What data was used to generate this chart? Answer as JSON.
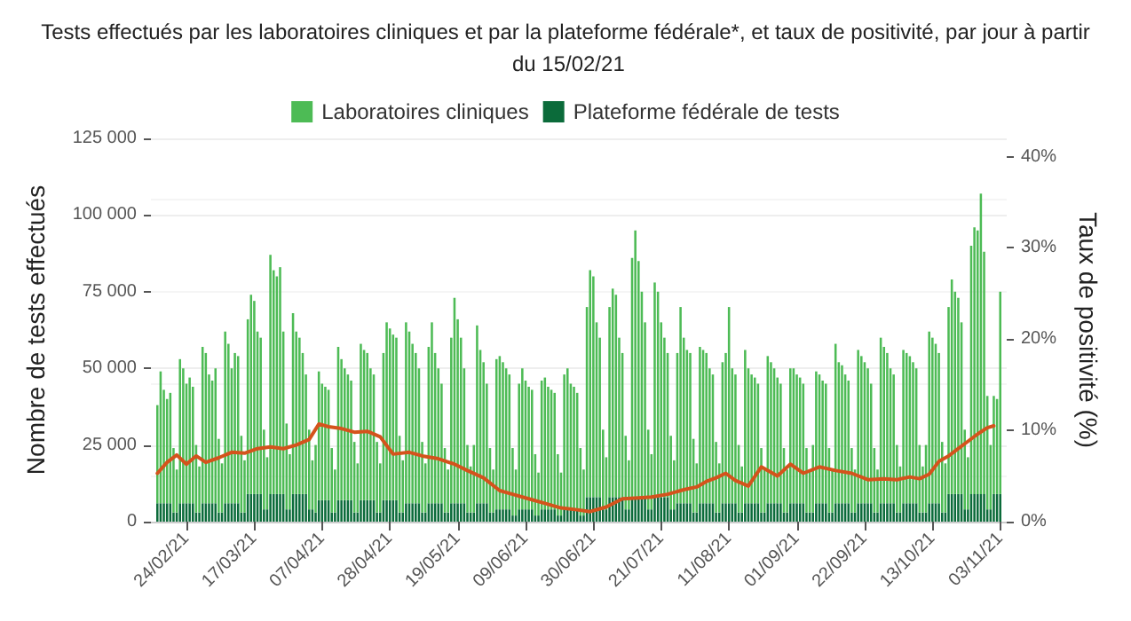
{
  "chart_data": {
    "type": "bar",
    "title": "Tests effectués par les laboratoires cliniques et par la plateforme fédérale*, et taux de positivité, par jour à partir du 15/02/21",
    "ylabel": "Nombre de tests effectués",
    "y2label": "Taux de positivité (%)",
    "x": [
      "2021-02-15",
      "2021-02-16",
      "2021-02-17",
      "2021-02-18",
      "2021-02-19",
      "2021-02-20",
      "2021-02-21",
      "2021-02-22",
      "2021-02-23",
      "2021-02-24",
      "2021-02-25",
      "2021-02-26",
      "2021-02-27",
      "2021-02-28",
      "2021-03-01",
      "2021-03-02",
      "2021-03-03",
      "2021-03-04",
      "2021-03-05",
      "2021-03-06",
      "2021-03-07",
      "2021-03-08",
      "2021-03-09",
      "2021-03-10",
      "2021-03-11",
      "2021-03-12",
      "2021-03-13",
      "2021-03-14",
      "2021-03-15",
      "2021-03-16",
      "2021-03-17",
      "2021-03-18",
      "2021-03-19",
      "2021-03-20",
      "2021-03-21",
      "2021-03-22",
      "2021-03-23",
      "2021-03-24",
      "2021-03-25",
      "2021-03-26",
      "2021-03-27",
      "2021-03-28",
      "2021-03-29",
      "2021-03-30",
      "2021-03-31",
      "2021-04-01",
      "2021-04-02",
      "2021-04-03",
      "2021-04-04",
      "2021-04-05",
      "2021-04-06",
      "2021-04-07",
      "2021-04-08",
      "2021-04-09",
      "2021-04-10",
      "2021-04-11",
      "2021-04-12",
      "2021-04-13",
      "2021-04-14",
      "2021-04-15",
      "2021-04-16",
      "2021-04-17",
      "2021-04-18",
      "2021-04-19",
      "2021-04-20",
      "2021-04-21",
      "2021-04-22",
      "2021-04-23",
      "2021-04-24",
      "2021-04-25",
      "2021-04-26",
      "2021-04-27",
      "2021-04-28",
      "2021-04-29",
      "2021-04-30",
      "2021-05-01",
      "2021-05-02",
      "2021-05-03",
      "2021-05-04",
      "2021-05-05",
      "2021-05-06",
      "2021-05-07",
      "2021-05-08",
      "2021-05-09",
      "2021-05-10",
      "2021-05-11",
      "2021-05-12",
      "2021-05-13",
      "2021-05-14",
      "2021-05-15",
      "2021-05-16",
      "2021-05-17",
      "2021-05-18",
      "2021-05-19",
      "2021-05-20",
      "2021-05-21",
      "2021-05-22",
      "2021-05-23",
      "2021-05-24",
      "2021-05-25",
      "2021-05-26",
      "2021-05-27",
      "2021-05-28",
      "2021-05-29",
      "2021-05-30",
      "2021-05-31",
      "2021-06-01",
      "2021-06-02",
      "2021-06-03",
      "2021-06-04",
      "2021-06-05",
      "2021-06-06",
      "2021-06-07",
      "2021-06-08",
      "2021-06-09",
      "2021-06-10",
      "2021-06-11",
      "2021-06-12",
      "2021-06-13",
      "2021-06-14",
      "2021-06-15",
      "2021-06-16",
      "2021-06-17",
      "2021-06-18",
      "2021-06-19",
      "2021-06-20",
      "2021-06-21",
      "2021-06-22",
      "2021-06-23",
      "2021-06-24",
      "2021-06-25",
      "2021-06-26",
      "2021-06-27",
      "2021-06-28",
      "2021-06-29",
      "2021-06-30",
      "2021-07-01",
      "2021-07-02",
      "2021-07-03",
      "2021-07-04",
      "2021-07-05",
      "2021-07-06",
      "2021-07-07",
      "2021-07-08",
      "2021-07-09",
      "2021-07-10",
      "2021-07-11",
      "2021-07-12",
      "2021-07-13",
      "2021-07-14",
      "2021-07-15",
      "2021-07-16",
      "2021-07-17",
      "2021-07-18",
      "2021-07-19",
      "2021-07-20",
      "2021-07-21",
      "2021-07-22",
      "2021-07-23",
      "2021-07-24",
      "2021-07-25",
      "2021-07-26",
      "2021-07-27",
      "2021-07-28",
      "2021-07-29",
      "2021-07-30",
      "2021-07-31",
      "2021-08-01",
      "2021-08-02",
      "2021-08-03",
      "2021-08-04",
      "2021-08-05",
      "2021-08-06",
      "2021-08-07",
      "2021-08-08",
      "2021-08-09",
      "2021-08-10",
      "2021-08-11",
      "2021-08-12",
      "2021-08-13",
      "2021-08-14",
      "2021-08-15",
      "2021-08-16",
      "2021-08-17",
      "2021-08-18",
      "2021-08-19",
      "2021-08-20",
      "2021-08-21",
      "2021-08-22",
      "2021-08-23",
      "2021-08-24",
      "2021-08-25",
      "2021-08-26",
      "2021-08-27",
      "2021-08-28",
      "2021-08-29",
      "2021-08-30",
      "2021-08-31",
      "2021-09-01",
      "2021-09-02",
      "2021-09-03",
      "2021-09-04",
      "2021-09-05",
      "2021-09-06",
      "2021-09-07",
      "2021-09-08",
      "2021-09-09",
      "2021-09-10",
      "2021-09-11",
      "2021-09-12",
      "2021-09-13",
      "2021-09-14",
      "2021-09-15",
      "2021-09-16",
      "2021-09-17",
      "2021-09-18",
      "2021-09-19",
      "2021-09-20",
      "2021-09-21",
      "2021-09-22",
      "2021-09-23",
      "2021-09-24",
      "2021-09-25",
      "2021-09-26",
      "2021-09-27",
      "2021-09-28",
      "2021-09-29",
      "2021-09-30",
      "2021-10-01",
      "2021-10-02",
      "2021-10-03",
      "2021-10-04",
      "2021-10-05",
      "2021-10-06",
      "2021-10-07",
      "2021-10-08",
      "2021-10-09",
      "2021-10-10",
      "2021-10-11",
      "2021-10-12",
      "2021-10-13",
      "2021-10-14",
      "2021-10-15",
      "2021-10-16",
      "2021-10-17",
      "2021-10-18",
      "2021-10-19",
      "2021-10-20",
      "2021-10-21",
      "2021-10-22",
      "2021-10-23",
      "2021-10-24",
      "2021-10-25",
      "2021-10-26",
      "2021-10-27",
      "2021-10-28",
      "2021-10-29",
      "2021-10-30",
      "2021-10-31",
      "2021-11-01",
      "2021-11-02",
      "2021-11-03"
    ],
    "series": [
      {
        "name": "Plateforme fédérale de tests",
        "color": "#0b6b3a",
        "values": [
          6000,
          6000,
          6000,
          6000,
          6000,
          3000,
          3000,
          6000,
          6000,
          6000,
          6000,
          6000,
          3000,
          3000,
          6000,
          6000,
          6000,
          6000,
          6000,
          3000,
          3000,
          6000,
          6000,
          6000,
          6000,
          6000,
          3000,
          3000,
          9000,
          9000,
          9000,
          9000,
          9000,
          4000,
          4000,
          9000,
          9000,
          9000,
          9000,
          9000,
          4000,
          4000,
          9000,
          9000,
          9000,
          9000,
          9000,
          4000,
          4000,
          3000,
          7000,
          7000,
          7000,
          7000,
          3000,
          3000,
          7000,
          7000,
          7000,
          7000,
          7000,
          3000,
          3000,
          7000,
          7000,
          7000,
          7000,
          7000,
          3000,
          3000,
          7000,
          7000,
          7000,
          7000,
          7000,
          3000,
          3000,
          6000,
          6000,
          6000,
          6000,
          6000,
          3000,
          3000,
          6000,
          6000,
          6000,
          6000,
          6000,
          3000,
          3000,
          6000,
          6000,
          6000,
          6000,
          6000,
          3000,
          3000,
          3000,
          6000,
          6000,
          6000,
          6000,
          3000,
          3000,
          4000,
          4000,
          4000,
          4000,
          4000,
          2000,
          2000,
          4000,
          4000,
          4000,
          4000,
          4000,
          2000,
          2000,
          4000,
          4000,
          4000,
          4000,
          4000,
          2000,
          2000,
          4000,
          4000,
          4000,
          4000,
          4000,
          2000,
          2000,
          8000,
          8000,
          8000,
          8000,
          8000,
          4000,
          4000,
          8000,
          8000,
          8000,
          8000,
          8000,
          4000,
          4000,
          8000,
          8000,
          8000,
          8000,
          8000,
          4000,
          4000,
          8000,
          8000,
          8000,
          8000,
          8000,
          4000,
          4000,
          6000,
          6000,
          6000,
          6000,
          6000,
          3000,
          3000,
          6000,
          6000,
          6000,
          6000,
          6000,
          3000,
          3000,
          6000,
          6000,
          6000,
          6000,
          6000,
          3000,
          3000,
          6000,
          6000,
          6000,
          6000,
          6000,
          3000,
          3000,
          6000,
          6000,
          6000,
          6000,
          6000,
          3000,
          3000,
          6000,
          6000,
          6000,
          6000,
          6000,
          3000,
          3000,
          3000,
          6000,
          6000,
          6000,
          6000,
          3000,
          3000,
          6000,
          6000,
          6000,
          6000,
          6000,
          3000,
          3000,
          6000,
          6000,
          6000,
          6000,
          6000,
          3000,
          3000,
          6000,
          6000,
          6000,
          6000,
          6000,
          3000,
          3000,
          6000,
          6000,
          6000,
          6000,
          6000,
          3000,
          3000,
          3000,
          6000,
          6000,
          6000,
          6000,
          3000,
          3000,
          9000,
          9000,
          9000,
          9000,
          9000,
          4000,
          4000,
          9000,
          9000,
          9000,
          9000,
          9000,
          4000,
          4000,
          9000,
          9000,
          9000
        ]
      },
      {
        "name": "Laboratoires cliniques",
        "color": "#4dbb55",
        "values": [
          32000,
          43000,
          37000,
          34000,
          36000,
          21000,
          14000,
          47000,
          44000,
          39000,
          41000,
          38000,
          22000,
          15000,
          51000,
          49000,
          42000,
          40000,
          44000,
          24000,
          16000,
          56000,
          52000,
          44000,
          49000,
          48000,
          25000,
          17000,
          57000,
          65000,
          63000,
          53000,
          51000,
          26000,
          17000,
          78000,
          73000,
          71000,
          74000,
          53000,
          28000,
          18000,
          59000,
          53000,
          51000,
          46000,
          39000,
          26000,
          16000,
          22000,
          42000,
          38000,
          37000,
          36000,
          21000,
          14000,
          50000,
          46000,
          43000,
          41000,
          39000,
          23000,
          16000,
          51000,
          49000,
          48000,
          43000,
          41000,
          23000,
          16000,
          48000,
          58000,
          56000,
          54000,
          53000,
          25000,
          17000,
          59000,
          56000,
          52000,
          49000,
          44000,
          23000,
          16000,
          51000,
          59000,
          49000,
          44000,
          39000,
          21000,
          14000,
          54000,
          67000,
          60000,
          54000,
          44000,
          22000,
          15000,
          22000,
          58000,
          50000,
          46000,
          39000,
          21000,
          14000,
          49000,
          50000,
          48000,
          46000,
          44000,
          22000,
          15000,
          41000,
          46000,
          42000,
          40000,
          39000,
          20000,
          14000,
          42000,
          43000,
          40000,
          39000,
          38000,
          20000,
          14000,
          44000,
          46000,
          41000,
          40000,
          38000,
          22000,
          15000,
          62000,
          74000,
          72000,
          57000,
          52000,
          26000,
          17000,
          62000,
          68000,
          66000,
          52000,
          47000,
          24000,
          16000,
          78000,
          87000,
          77000,
          67000,
          57000,
          26000,
          18000,
          70000,
          67000,
          57000,
          52000,
          47000,
          24000,
          16000,
          49000,
          64000,
          54000,
          50000,
          49000,
          24000,
          16000,
          51000,
          50000,
          49000,
          44000,
          42000,
          23000,
          16000,
          46000,
          49000,
          64000,
          44000,
          42000,
          22000,
          15000,
          50000,
          44000,
          42000,
          41000,
          39000,
          21000,
          14000,
          48000,
          46000,
          44000,
          41000,
          39000,
          21000,
          14000,
          44000,
          44000,
          42000,
          41000,
          39000,
          21000,
          14000,
          22000,
          43000,
          42000,
          40000,
          39000,
          21000,
          14000,
          52000,
          46000,
          45000,
          42000,
          40000,
          21000,
          14000,
          50000,
          48000,
          46000,
          44000,
          39000,
          21000,
          14000,
          54000,
          51000,
          49000,
          44000,
          42000,
          22000,
          15000,
          50000,
          49000,
          48000,
          46000,
          44000,
          22000,
          15000,
          22000,
          56000,
          54000,
          52000,
          49000,
          23000,
          16000,
          61000,
          70000,
          66000,
          64000,
          56000,
          26000,
          17000,
          81000,
          87000,
          86000,
          98000,
          79000,
          37000,
          21000,
          32000,
          31000,
          66000
        ]
      },
      {
        "type": "line",
        "axis": "y2",
        "color": "#d4531c",
        "x": [
          "2021-02-15",
          "2021-02-18",
          "2021-02-21",
          "2021-02-24",
          "2021-02-27",
          "2021-03-02",
          "2021-03-06",
          "2021-03-10",
          "2021-03-14",
          "2021-03-18",
          "2021-03-22",
          "2021-03-26",
          "2021-03-30",
          "2021-04-03",
          "2021-04-06",
          "2021-04-09",
          "2021-04-13",
          "2021-04-17",
          "2021-04-21",
          "2021-04-25",
          "2021-04-29",
          "2021-05-04",
          "2021-05-08",
          "2021-05-13",
          "2021-05-18",
          "2021-05-22",
          "2021-05-27",
          "2021-06-01",
          "2021-06-05",
          "2021-06-10",
          "2021-06-15",
          "2021-06-20",
          "2021-06-25",
          "2021-06-29",
          "2021-07-04",
          "2021-07-09",
          "2021-07-14",
          "2021-07-18",
          "2021-07-23",
          "2021-07-28",
          "2021-08-01",
          "2021-08-04",
          "2021-08-07",
          "2021-08-10",
          "2021-08-13",
          "2021-08-17",
          "2021-08-21",
          "2021-08-26",
          "2021-08-30",
          "2021-09-03",
          "2021-09-08",
          "2021-09-13",
          "2021-09-18",
          "2021-09-23",
          "2021-09-28",
          "2021-10-02",
          "2021-10-06",
          "2021-10-09",
          "2021-10-12",
          "2021-10-15",
          "2021-10-18",
          "2021-10-21",
          "2021-10-24",
          "2021-10-27",
          "2021-10-30",
          "2021-11-01"
        ],
        "values": [
          5.3,
          6.5,
          7.3,
          6.3,
          7.2,
          6.5,
          7.0,
          7.6,
          7.5,
          8.0,
          8.2,
          8.0,
          8.4,
          9.0,
          10.7,
          10.4,
          10.2,
          9.8,
          9.9,
          9.3,
          7.4,
          7.6,
          7.2,
          6.9,
          6.3,
          5.6,
          4.8,
          3.4,
          3.0,
          2.5,
          2.0,
          1.5,
          1.3,
          1.1,
          1.6,
          2.5,
          2.6,
          2.7,
          3.0,
          3.5,
          3.8,
          4.4,
          4.8,
          5.3,
          4.5,
          3.9,
          6.0,
          5.0,
          6.3,
          5.3,
          6.0,
          5.6,
          5.3,
          4.6,
          4.7,
          4.6,
          4.9,
          4.7,
          5.2,
          6.6,
          7.2,
          8.0,
          8.8,
          9.6,
          10.3,
          10.5
        ]
      }
    ],
    "stacked": true,
    "ylim": [
      0,
      125000
    ],
    "yticks": [
      0,
      {
        "value": 25000,
        "label": "25 000"
      },
      {
        "value": 50000,
        "label": "50 000"
      },
      {
        "value": 75000,
        "label": "75 000"
      },
      {
        "value": 100000,
        "label": "100 000"
      },
      {
        "value": 125000,
        "label": "125 000"
      }
    ],
    "y2lim": [
      0,
      42
    ],
    "y2ticks": [
      {
        "value": 0,
        "label": "0%"
      },
      {
        "value": 10,
        "label": "10%"
      },
      {
        "value": 20,
        "label": "20%"
      },
      {
        "value": 30,
        "label": "30%"
      },
      {
        "value": 40,
        "label": "40%"
      }
    ],
    "xlim": [
      "2021-02-13",
      "2021-11-05"
    ],
    "xticks": [
      {
        "value": "2021-02-24",
        "label": "24/02/21"
      },
      {
        "value": "2021-03-17",
        "label": "17/03/21"
      },
      {
        "value": "2021-04-07",
        "label": "07/04/21"
      },
      {
        "value": "2021-04-28",
        "label": "28/04/21"
      },
      {
        "value": "2021-05-19",
        "label": "19/05/21"
      },
      {
        "value": "2021-06-09",
        "label": "09/06/21"
      },
      {
        "value": "2021-06-30",
        "label": "30/06/21"
      },
      {
        "value": "2021-07-21",
        "label": "21/07/21"
      },
      {
        "value": "2021-08-11",
        "label": "11/08/21"
      },
      {
        "value": "2021-09-01",
        "label": "01/09/21"
      },
      {
        "value": "2021-09-22",
        "label": "22/09/21"
      },
      {
        "value": "2021-10-13",
        "label": "13/10/21"
      },
      {
        "value": "2021-11-03",
        "label": "03/11/21"
      }
    ],
    "grid": "y",
    "legend": "top",
    "marker": "none"
  }
}
